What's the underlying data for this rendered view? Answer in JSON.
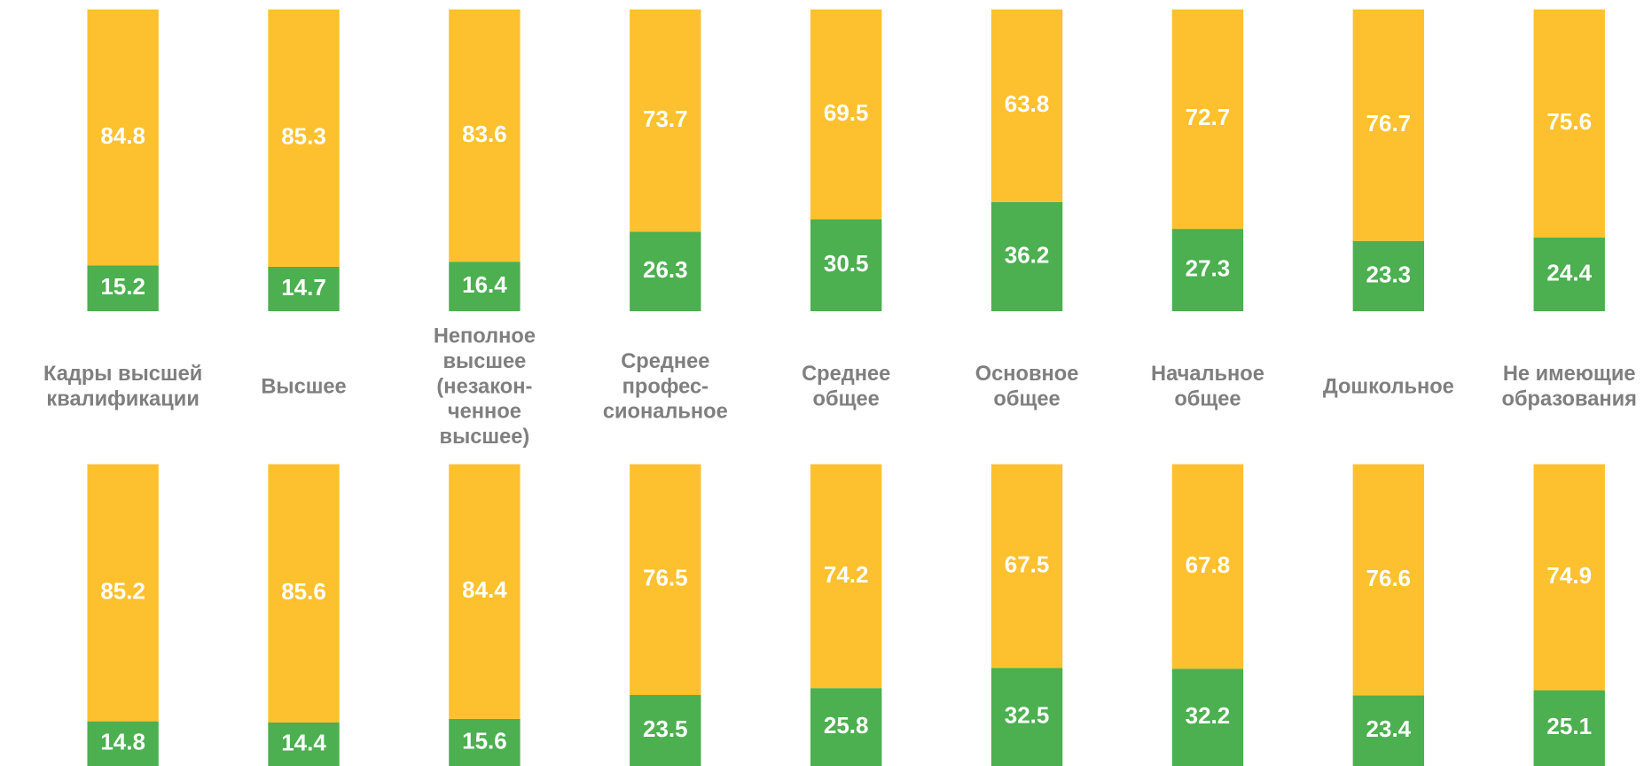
{
  "chart_data": [
    {
      "type": "bar",
      "stacked": true,
      "ylim": [
        0,
        100
      ],
      "categories": [
        "Кадры высшей\nквалификации",
        "Высшее",
        "Неполное\nвысшее\n(незакон-\nченное\nвысшее)",
        "Среднее\nпрофес-\nсиональное",
        "Среднее\nобщее",
        "Основное\nобщее",
        "Начальное\nобщее",
        "Дошкольное",
        "Не имеющие\nобразования"
      ],
      "series": [
        {
          "color": "#4caf50",
          "values": [
            15.2,
            14.7,
            16.4,
            26.3,
            30.5,
            36.2,
            27.3,
            23.3,
            24.4
          ]
        },
        {
          "color": "#fdc12f",
          "values": [
            84.8,
            85.3,
            83.6,
            73.7,
            69.5,
            63.8,
            72.7,
            76.7,
            75.6
          ]
        }
      ]
    },
    {
      "type": "bar",
      "stacked": true,
      "ylim": [
        0,
        100
      ],
      "series": [
        {
          "color": "#4caf50",
          "values": [
            14.8,
            14.4,
            15.6,
            23.5,
            25.8,
            32.5,
            32.2,
            23.4,
            25.1
          ]
        },
        {
          "color": "#fdc12f",
          "values": [
            85.2,
            85.6,
            84.4,
            76.5,
            74.2,
            67.5,
            67.8,
            76.6,
            74.9
          ]
        }
      ]
    }
  ]
}
